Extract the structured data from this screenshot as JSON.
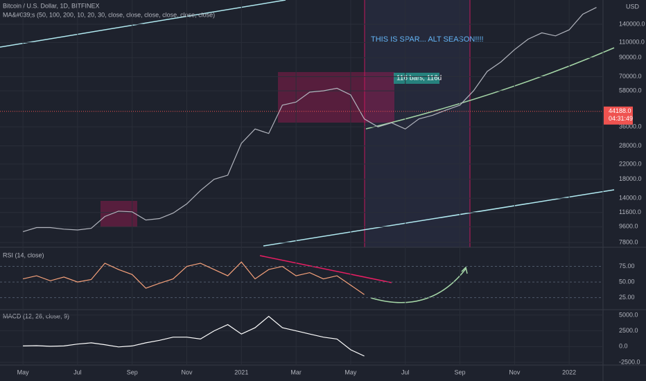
{
  "header": {
    "symbol": "Bitcoin / U.S. Dollar, 1D, BITFINEX",
    "indicator": "MA&#039;s (50, 100, 200, 10, 20, 30, close, close, close, close, close, close)",
    "currency": "USD"
  },
  "annotations": {
    "headline": "THIS IS SPAR... ALT SEASON!!!!",
    "range": "116 bars, 116d"
  },
  "last_price": {
    "value": 44188,
    "label": "44188.0"
  },
  "countdown": "04:31:49",
  "xlim": [
    3.16,
    25.24
  ],
  "xticks": [
    {
      "value": 4,
      "label": "May"
    },
    {
      "value": 6,
      "label": "Jul"
    },
    {
      "value": 8,
      "label": "Sep"
    },
    {
      "value": 10,
      "label": "Nov"
    },
    {
      "value": 12,
      "label": "2021"
    },
    {
      "value": 14,
      "label": "Mar"
    },
    {
      "value": 16,
      "label": "May"
    },
    {
      "value": 18,
      "label": "Jul"
    },
    {
      "value": 20,
      "label": "Sep"
    },
    {
      "value": 22,
      "label": "Nov"
    },
    {
      "value": 24,
      "label": "2022"
    }
  ],
  "chart_data": [
    {
      "type": "line",
      "log": true,
      "ylim": [
        7450,
        193000
      ],
      "yticks": [
        {
          "value": 7800,
          "label": "7800.0"
        },
        {
          "value": 9600,
          "label": "9600.0"
        },
        {
          "value": 11600,
          "label": "11600.0"
        },
        {
          "value": 14000,
          "label": "14000.0"
        },
        {
          "value": 18000,
          "label": "18000.0"
        },
        {
          "value": 22000,
          "label": "22000.0"
        },
        {
          "value": 28000,
          "label": "28000.0"
        },
        {
          "value": 36000,
          "label": "36000.0"
        },
        {
          "value": 58000,
          "label": "58000.0"
        },
        {
          "value": 70000,
          "label": "70000.0"
        },
        {
          "value": 90000,
          "label": "90000.0"
        },
        {
          "value": 110000,
          "label": "110000.0"
        },
        {
          "value": 140000,
          "label": "140000.0"
        }
      ],
      "x": [
        4,
        4.5,
        5,
        5.5,
        6,
        6.5,
        7,
        7.5,
        8,
        8.5,
        9,
        9.5,
        10,
        10.5,
        11,
        11.5,
        12,
        12.5,
        13,
        13.5,
        14,
        14.5,
        15,
        15.5,
        16,
        16.5,
        17,
        17.5,
        18,
        18.5,
        19,
        19.5,
        20,
        20.5,
        21,
        21.5,
        22,
        22.5,
        23,
        23.5,
        24,
        24.5,
        25
      ],
      "series": [
        {
          "color": "#b2b5be",
          "values": [
            9000,
            9500,
            9500,
            9300,
            9200,
            9400,
            11000,
            11800,
            11700,
            10500,
            10700,
            11500,
            13000,
            15500,
            18000,
            19000,
            29000,
            35000,
            33000,
            48000,
            50000,
            57000,
            58000,
            60000,
            55000,
            40000,
            36000,
            38000,
            35000,
            40000,
            42000,
            45000,
            48000,
            58000,
            75000,
            85000,
            100000,
            115000,
            125000,
            120000,
            130000,
            160000,
            175000
          ]
        }
      ]
    },
    {
      "type": "line",
      "title": "RSI (14, close)",
      "ylim": [
        8,
        100
      ],
      "yticks": [
        {
          "value": 25,
          "label": "25.00"
        },
        {
          "value": 50,
          "label": "50.00"
        },
        {
          "value": 75,
          "label": "75.00"
        }
      ],
      "x": [
        4,
        4.5,
        5,
        5.5,
        6,
        6.5,
        7,
        7.5,
        8,
        8.5,
        9,
        9.5,
        10,
        10.5,
        11,
        11.5,
        12,
        12.5,
        13,
        13.5,
        14,
        14.5,
        15,
        15.5,
        16,
        16.5
      ],
      "series": [
        {
          "color": "#f7a27b",
          "values": [
            55,
            60,
            52,
            58,
            50,
            54,
            80,
            70,
            62,
            40,
            48,
            55,
            75,
            80,
            70,
            60,
            82,
            55,
            70,
            75,
            60,
            65,
            55,
            60,
            45,
            30
          ]
        }
      ]
    },
    {
      "type": "line",
      "title": "MACD (12, 26, close, 9)",
      "ylim": [
        -2935,
        5543
      ],
      "yticks": [
        {
          "value": -2500,
          "label": "-2500.0"
        },
        {
          "value": 0,
          "label": "0.0"
        },
        {
          "value": 2500,
          "label": "2500.0"
        },
        {
          "value": 5000,
          "label": "5000.0"
        }
      ],
      "x": [
        4,
        4.5,
        5,
        5.5,
        6,
        6.5,
        7,
        7.5,
        8,
        8.5,
        9,
        9.5,
        10,
        10.5,
        11,
        11.5,
        12,
        12.5,
        13,
        13.5,
        14,
        14.5,
        15,
        15.5,
        16,
        16.5
      ],
      "series": [
        {
          "color": "#ffffff",
          "values": [
            100,
            150,
            50,
            100,
            400,
            600,
            300,
            -50,
            100,
            600,
            1000,
            1500,
            1500,
            1200,
            2500,
            3500,
            2000,
            3000,
            4800,
            3000,
            2500,
            2000,
            1500,
            1200,
            -500,
            -1500
          ]
        }
      ]
    }
  ]
}
